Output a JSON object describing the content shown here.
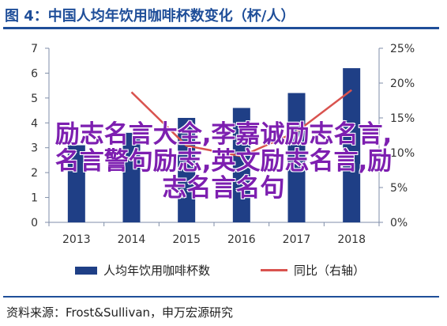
{
  "header": {
    "title": "图 4：中国人均年饮用咖啡杯数变化（杯/人）"
  },
  "chart_data": {
    "type": "bar",
    "categories": [
      "2013",
      "2014",
      "2015",
      "2016",
      "2017",
      "2018"
    ],
    "series": [
      {
        "name": "人均年饮用咖啡杯数",
        "type": "bar",
        "axis": "left",
        "values": [
          3.1,
          3.6,
          4.2,
          4.6,
          5.2,
          6.2
        ]
      },
      {
        "name": "同比（右轴）",
        "type": "line",
        "axis": "right",
        "values": [
          null,
          18.7,
          11.0,
          9.5,
          13.0,
          19.0
        ]
      }
    ],
    "y_left": {
      "ylim": [
        0,
        7
      ],
      "ticks": [
        "0",
        "1",
        "2",
        "3",
        "4",
        "5",
        "6",
        "7"
      ]
    },
    "y_right": {
      "ylim": [
        0,
        25
      ],
      "ticks": [
        "0%",
        "5%",
        "10%",
        "15%",
        "20%",
        "25%"
      ]
    },
    "grid": false,
    "legend": "bottom",
    "colors": {
      "bar": "#1f3f86",
      "line": "#d9534f",
      "title": "#1f4e99",
      "overlay": "#7d1fb0"
    }
  },
  "overlay_text": [
    "励志名言大全,李嘉诚励志名言,",
    "名言警句励志,英文励志名言,励",
    "志名言名句"
  ],
  "source": "资料来源：Frost&Sullivan，申万宏源研究"
}
